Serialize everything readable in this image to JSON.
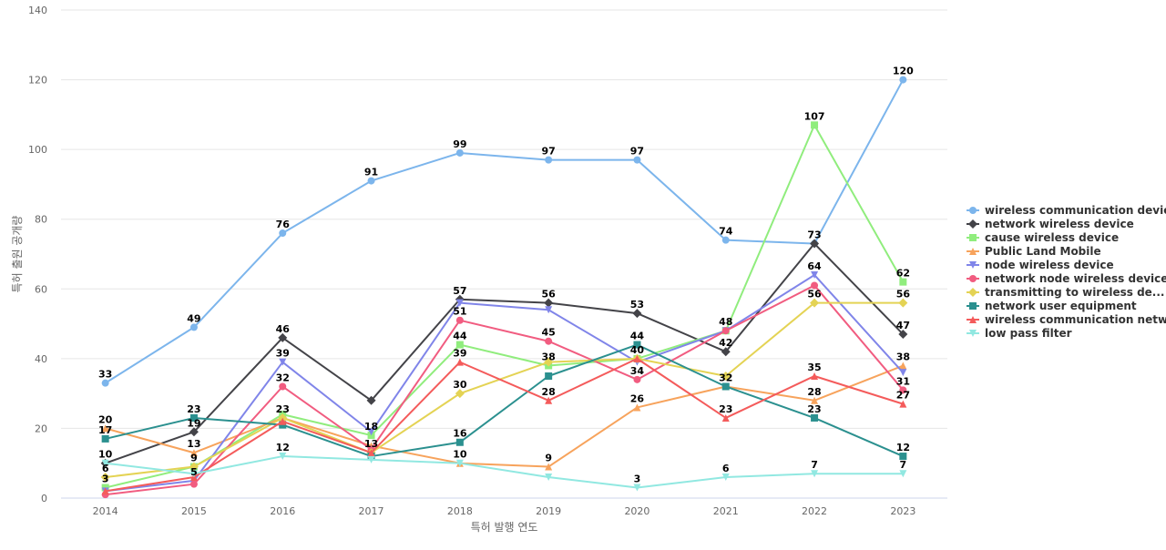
{
  "chart_data": {
    "type": "line",
    "title": "",
    "xlabel": "특허 발행 연도",
    "ylabel": "특허 출원 공개량",
    "ylim": [
      0,
      140
    ],
    "yticks": [
      0,
      20,
      40,
      60,
      80,
      100,
      120,
      140
    ],
    "grid": true,
    "legend_position": "right",
    "x": [
      "2014",
      "2015",
      "2016",
      "2017",
      "2018",
      "2019",
      "2020",
      "2021",
      "2022",
      "2023"
    ],
    "series": [
      {
        "name": "wireless communication device",
        "color": "#7cb5ec",
        "marker": "circle",
        "values": [
          33,
          49,
          76,
          91,
          99,
          97,
          97,
          74,
          73,
          120
        ],
        "labels": [
          "33",
          "49",
          "76",
          "91",
          "99",
          "97",
          "97",
          "74",
          "",
          "120"
        ]
      },
      {
        "name": "network wireless device",
        "color": "#434348",
        "marker": "diamond",
        "values": [
          10,
          19,
          46,
          28,
          57,
          56,
          53,
          42,
          73,
          47
        ],
        "labels": [
          "",
          "19",
          "46",
          "",
          "57",
          "56",
          "53",
          "42",
          "73",
          "47"
        ]
      },
      {
        "name": "cause wireless device",
        "color": "#90ed7d",
        "marker": "square",
        "values": [
          3,
          9,
          24,
          18,
          44,
          38,
          40,
          48,
          107,
          62
        ],
        "labels": [
          "3",
          "9",
          "",
          "18",
          "44",
          "38",
          "",
          "",
          "107",
          "62"
        ]
      },
      {
        "name": "Public Land Mobile",
        "color": "#f7a35c",
        "marker": "triangle",
        "values": [
          20,
          13,
          23,
          15,
          10,
          9,
          26,
          32,
          28,
          38
        ],
        "labels": [
          "20",
          "13",
          "23",
          "",
          "10",
          "9",
          "26",
          "32",
          "28",
          "38"
        ]
      },
      {
        "name": "node wireless device",
        "color": "#8085e9",
        "marker": "triangle-down",
        "values": [
          2,
          5,
          39,
          19,
          56,
          54,
          39,
          48,
          64,
          36
        ],
        "labels": [
          "",
          "5",
          "39",
          "",
          "",
          "",
          "",
          "",
          "64",
          ""
        ]
      },
      {
        "name": "network node wireless device",
        "color": "#f15c80",
        "marker": "circle",
        "values": [
          1,
          4,
          32,
          14,
          51,
          45,
          34,
          48,
          61,
          31
        ],
        "labels": [
          "",
          "",
          "32",
          "",
          "51",
          "45",
          "34",
          "48",
          "",
          "31"
        ]
      },
      {
        "name": "transmitting to wireless de...",
        "color": "#e4d354",
        "marker": "diamond",
        "values": [
          6,
          9,
          23,
          13,
          30,
          39,
          40,
          35,
          56,
          56
        ],
        "labels": [
          "6",
          "",
          "",
          "",
          "30",
          "",
          "40",
          "",
          "56",
          "56"
        ]
      },
      {
        "name": "network user equipment",
        "color": "#2b908f",
        "marker": "square",
        "values": [
          17,
          23,
          21,
          12,
          16,
          35,
          44,
          32,
          23,
          12
        ],
        "labels": [
          "17",
          "23",
          "",
          "",
          "16",
          "",
          "44",
          "",
          "23",
          "12"
        ]
      },
      {
        "name": "wireless communication netw...",
        "color": "#f45b5b",
        "marker": "triangle",
        "values": [
          2,
          6,
          22,
          13,
          39,
          28,
          40,
          23,
          35,
          27
        ],
        "labels": [
          "",
          "",
          "",
          "13",
          "39",
          "28",
          "",
          "23",
          "35",
          "27"
        ]
      },
      {
        "name": "low pass filter",
        "color": "#91e8e1",
        "marker": "triangle-down",
        "values": [
          10,
          7,
          12,
          11,
          10,
          6,
          3,
          6,
          7,
          7
        ],
        "labels": [
          "10",
          "",
          "12",
          "",
          "",
          "",
          "3",
          "6",
          "7",
          "7"
        ]
      }
    ]
  }
}
